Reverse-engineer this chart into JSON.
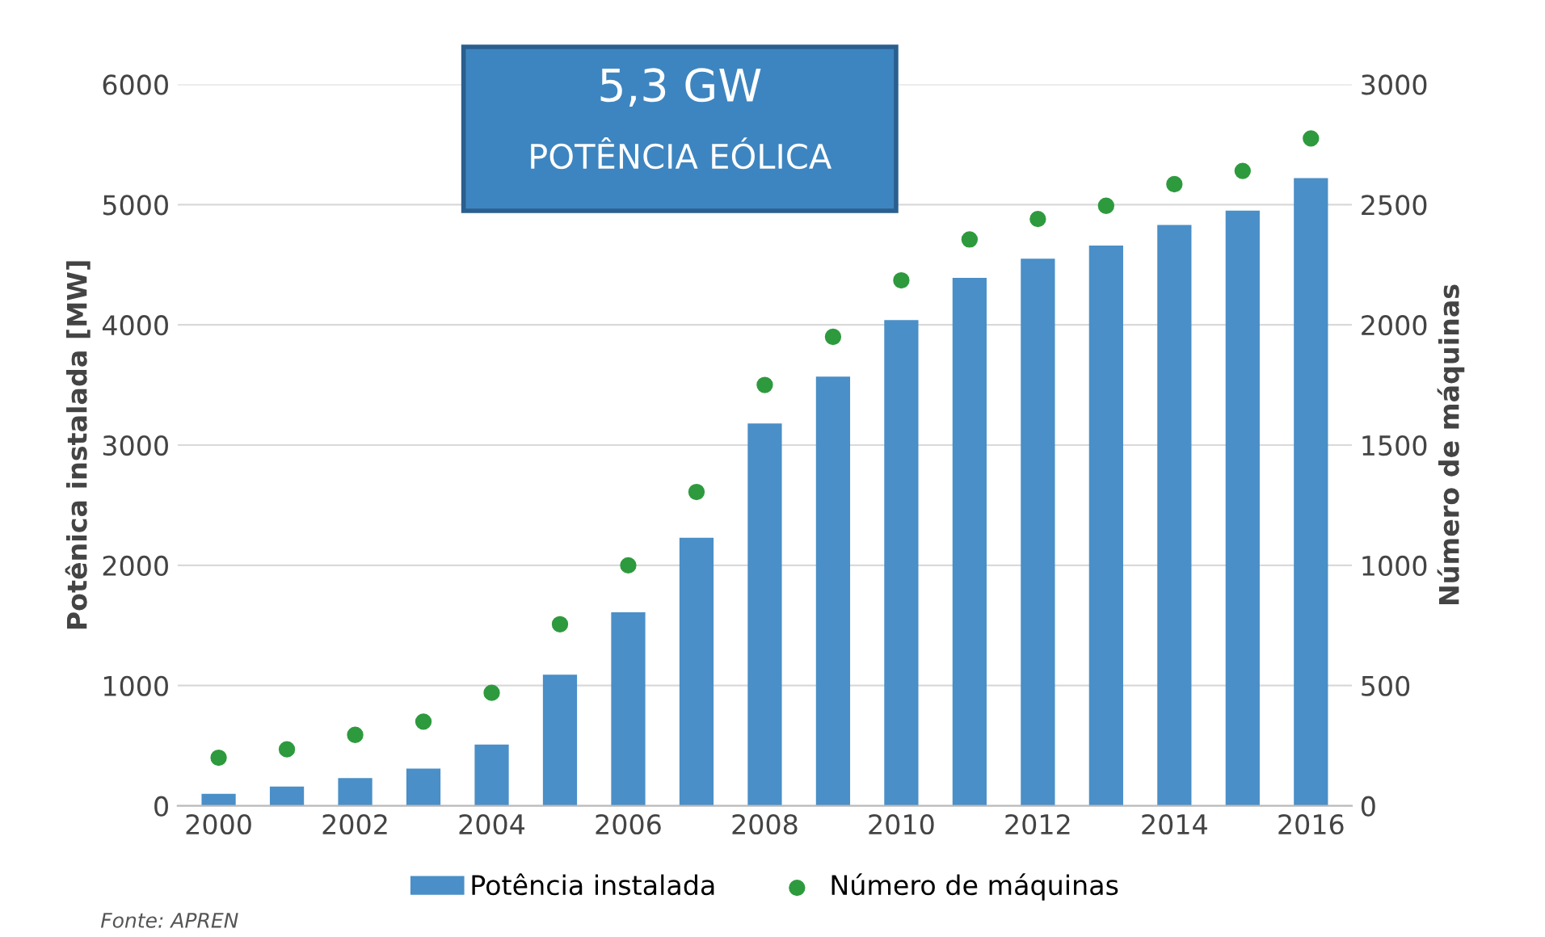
{
  "chart_data": {
    "type": "bar",
    "title": "5,3 GW",
    "subtitle": "POTÊNCIA EÓLICA",
    "ylabel": "Potênica instalada [MW]",
    "y2label": "Número de máquinas",
    "x": [
      2000,
      2001,
      2002,
      2003,
      2004,
      2005,
      2006,
      2007,
      2008,
      2009,
      2010,
      2011,
      2012,
      2013,
      2014,
      2015,
      2016
    ],
    "series": [
      {
        "name": "Potência instalada",
        "color": "#4a8fc7",
        "values": [
          100,
          160,
          230,
          310,
          510,
          1090,
          1610,
          2230,
          3180,
          3570,
          4040,
          4390,
          4550,
          4660,
          4830,
          4950,
          5220
        ]
      },
      {
        "name": "Número de máquinas",
        "type": "scatter",
        "axis": "y2",
        "color": "#2e9a3e",
        "values": [
          200,
          235,
          295,
          350,
          470,
          755,
          1000,
          1305,
          1750,
          1950,
          2185,
          2355,
          2440,
          2495,
          2585,
          2640,
          2775
        ]
      }
    ],
    "xlim": [
      1999.4,
      2016.6
    ],
    "xticks": [
      2000,
      2002,
      2004,
      2006,
      2008,
      2010,
      2012,
      2014,
      2016
    ],
    "ylim": [
      0,
      6000
    ],
    "yticks": [
      0,
      1000,
      2000,
      3000,
      4000,
      5000,
      6000
    ],
    "y2lim": [
      0,
      3000
    ],
    "y2ticks": [
      0,
      500,
      1000,
      1500,
      2000,
      2500,
      3000
    ],
    "grid": "y",
    "legend": "bottom",
    "marker": "circle",
    "annotations": [
      "Fonte: APREN"
    ]
  }
}
